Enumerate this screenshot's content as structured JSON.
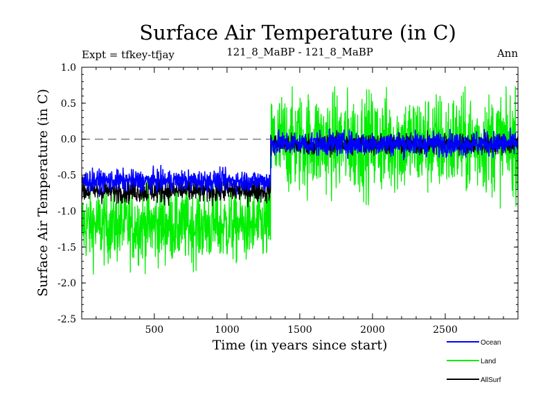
{
  "chart_data": {
    "type": "line",
    "title": "Surface Air Temperature (in C)",
    "subtitle_left": "Expt = tfkey-tfjay",
    "subtitle_center": "121_8_MaBP - 121_8_MaBP",
    "subtitle_right": "Ann",
    "xlabel": "Time (in years since start)",
    "ylabel": "Surface Air Temperature (in C)",
    "xlim": [
      1,
      3000
    ],
    "ylim": [
      -2.5,
      1.0
    ],
    "x_ticks": [
      500,
      1000,
      1500,
      2000,
      2500
    ],
    "y_ticks": [
      -2.5,
      -2.0,
      -1.5,
      -1.0,
      -0.5,
      0.0,
      0.5,
      1.0
    ],
    "y_tick_labels": [
      "-2.5",
      "-2.0",
      "-1.5",
      "-1.0",
      "-0.5",
      "0.0",
      "0.5",
      "1.0"
    ],
    "reference_line": {
      "y": 0.0,
      "style": "dashed",
      "color": "#808080"
    },
    "legend_position": "bottom-right",
    "series": [
      {
        "name": "Land",
        "color": "#00ee00",
        "segments": [
          {
            "x_start": 1,
            "x_end": 1300,
            "mean": -1.2,
            "min": -2.02,
            "max": -0.6
          },
          {
            "x_start": 1300,
            "x_end": 3000,
            "mean": -0.05,
            "min": -1.15,
            "max": 0.73
          }
        ]
      },
      {
        "name": "AllSurf",
        "color": "#000000",
        "segments": [
          {
            "x_start": 1,
            "x_end": 1300,
            "mean": -0.72,
            "min": -0.98,
            "max": -0.5
          },
          {
            "x_start": 1300,
            "x_end": 3000,
            "mean": -0.07,
            "min": -0.3,
            "max": 0.12
          }
        ]
      },
      {
        "name": "Ocean",
        "color": "#0000ff",
        "segments": [
          {
            "x_start": 1,
            "x_end": 1300,
            "mean": -0.58,
            "min": -0.8,
            "max": -0.35
          },
          {
            "x_start": 1300,
            "x_end": 3000,
            "mean": -0.06,
            "min": -0.32,
            "max": 0.15
          }
        ]
      }
    ],
    "legend_order": [
      "Ocean",
      "Land",
      "AllSurf"
    ]
  }
}
